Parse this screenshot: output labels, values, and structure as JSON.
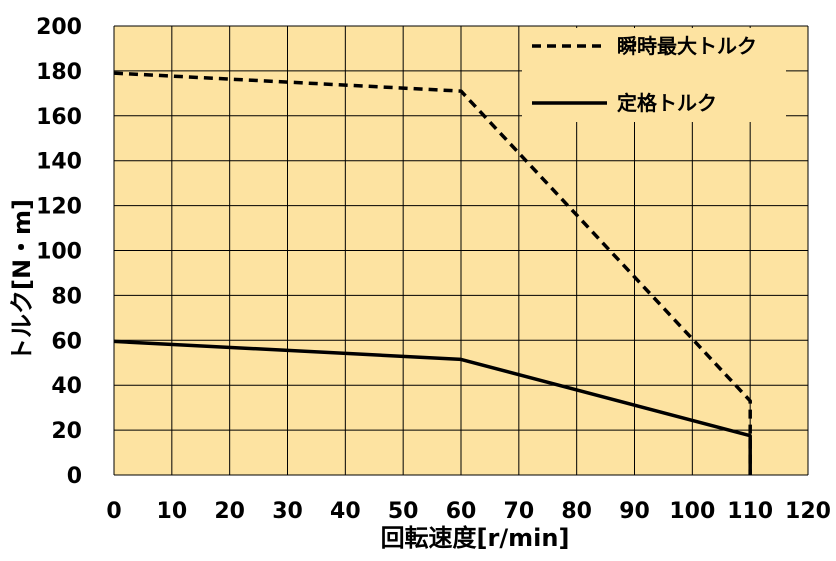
{
  "chart_data": {
    "type": "line",
    "xlabel": "回転速度[r/min]",
    "ylabel": "トルク[N・m]",
    "xlim": [
      0,
      120
    ],
    "ylim": [
      0,
      200
    ],
    "xticks": [
      0,
      10,
      20,
      30,
      40,
      50,
      60,
      70,
      80,
      90,
      100,
      110,
      120
    ],
    "yticks": [
      0,
      20,
      40,
      60,
      80,
      100,
      120,
      140,
      160,
      180,
      200
    ],
    "grid": true,
    "legend_position": "top-right",
    "colors": {
      "plot_background": "#FDE3A1",
      "grid": "#000000",
      "series": "#000000"
    },
    "series": [
      {
        "name": "瞬時最大トルク",
        "style": "dashed",
        "points": [
          [
            0,
            179
          ],
          [
            60,
            171
          ],
          [
            110,
            33
          ],
          [
            110,
            0
          ]
        ]
      },
      {
        "name": "定格トルク",
        "style": "solid",
        "points": [
          [
            0,
            59.5
          ],
          [
            60,
            51.5
          ],
          [
            110,
            17.5
          ],
          [
            110,
            0
          ]
        ]
      }
    ]
  }
}
